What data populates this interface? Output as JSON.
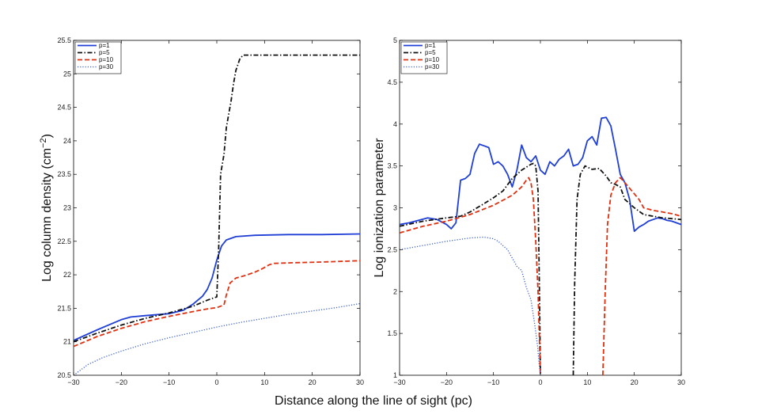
{
  "figure": {
    "shared_xlabel": "Distance along the line of sight (pc)"
  },
  "chart_data": [
    {
      "type": "line",
      "ylabel": "Log column density (cm",
      "ylabel_sup": "−2",
      "ylabel_end": ")",
      "xlim": [
        -30,
        30
      ],
      "ylim": [
        20.5,
        25.5
      ],
      "xticks": [
        -30,
        -20,
        -10,
        0,
        10,
        20,
        30
      ],
      "xtick_labels": [
        "−30",
        "−20",
        "−10",
        "0",
        "10",
        "20",
        "30"
      ],
      "yticks": [
        20.5,
        21,
        21.5,
        22,
        22.5,
        23,
        23.5,
        24,
        24.5,
        25,
        25.5
      ],
      "ytick_labels": [
        "20.5",
        "21",
        "21.5",
        "22",
        "22.5",
        "23",
        "23.5",
        "24",
        "24.5",
        "25",
        "25.5"
      ],
      "legend_position": "top-left",
      "series": [
        {
          "name": "p=1",
          "color": "#1f3fd6",
          "style": "solid",
          "segments": [
            [
              [
                -30,
                21.02
              ],
              [
                -25,
                21.18
              ],
              [
                -20,
                21.33
              ],
              [
                -18,
                21.37
              ],
              [
                -15,
                21.39
              ],
              [
                -10,
                21.42
              ],
              [
                -7,
                21.47
              ],
              [
                -5,
                21.56
              ],
              [
                -3,
                21.68
              ],
              [
                -2,
                21.78
              ],
              [
                -1,
                21.95
              ],
              [
                0,
                22.22
              ],
              [
                1,
                22.43
              ],
              [
                2,
                22.52
              ],
              [
                4,
                22.57
              ],
              [
                8,
                22.59
              ],
              [
                15,
                22.6
              ],
              [
                22,
                22.6
              ],
              [
                30,
                22.61
              ]
            ]
          ]
        },
        {
          "name": "p=5",
          "color": "#111111",
          "style": "dashdot",
          "segments": [
            [
              [
                -30,
                21.0
              ],
              [
                -25,
                21.13
              ],
              [
                -20,
                21.25
              ],
              [
                -15,
                21.35
              ],
              [
                -10,
                21.43
              ],
              [
                -5,
                21.53
              ],
              [
                -2,
                21.62
              ],
              [
                0,
                21.67
              ],
              [
                0.4,
                22.4
              ],
              [
                0.8,
                23.5
              ],
              [
                1.5,
                23.8
              ],
              [
                2,
                24.2
              ],
              [
                3,
                24.6
              ],
              [
                3.5,
                24.85
              ],
              [
                4,
                25.05
              ],
              [
                4.8,
                25.22
              ],
              [
                5.5,
                25.28
              ],
              [
                10,
                25.28
              ],
              [
                20,
                25.28
              ],
              [
                30,
                25.28
              ]
            ]
          ]
        },
        {
          "name": "p=10",
          "color": "#e03010",
          "style": "dashed",
          "segments": [
            [
              [
                -30,
                20.93
              ],
              [
                -25,
                21.08
              ],
              [
                -20,
                21.2
              ],
              [
                -15,
                21.3
              ],
              [
                -10,
                21.38
              ],
              [
                -5,
                21.45
              ],
              [
                -2,
                21.49
              ],
              [
                0,
                21.51
              ],
              [
                1.5,
                21.55
              ],
              [
                2,
                21.7
              ],
              [
                2.8,
                21.88
              ],
              [
                4,
                21.95
              ],
              [
                6,
                21.99
              ],
              [
                8,
                22.04
              ],
              [
                9.5,
                22.09
              ],
              [
                11,
                22.15
              ],
              [
                12,
                22.17
              ],
              [
                16,
                22.18
              ],
              [
                22,
                22.19
              ],
              [
                30,
                22.21
              ]
            ]
          ]
        },
        {
          "name": "p=30",
          "color": "#3a5fd0",
          "style": "dotted",
          "segments": [
            [
              [
                -30,
                20.5
              ],
              [
                -27,
                20.66
              ],
              [
                -24,
                20.76
              ],
              [
                -20,
                20.86
              ],
              [
                -15,
                20.97
              ],
              [
                -10,
                21.06
              ],
              [
                -5,
                21.14
              ],
              [
                0,
                21.22
              ],
              [
                5,
                21.29
              ],
              [
                10,
                21.35
              ],
              [
                15,
                21.41
              ],
              [
                20,
                21.46
              ],
              [
                25,
                21.51
              ],
              [
                30,
                21.57
              ]
            ]
          ]
        }
      ]
    },
    {
      "type": "line",
      "ylabel": "Log ionization parameter",
      "xlim": [
        -30,
        30
      ],
      "ylim": [
        1,
        5
      ],
      "xticks": [
        -30,
        -20,
        -10,
        0,
        10,
        20,
        30
      ],
      "xtick_labels": [
        "−30",
        "−20",
        "−10",
        "0",
        "10",
        "20",
        "30"
      ],
      "yticks": [
        1,
        1.5,
        2,
        2.5,
        3,
        3.5,
        4,
        4.5,
        5
      ],
      "ytick_labels": [
        "1",
        "1.5",
        "2",
        "2.5",
        "3",
        "3.5",
        "4",
        "4.5",
        "5"
      ],
      "legend_position": "top-left",
      "series": [
        {
          "name": "p=1",
          "color": "#1f3fd6",
          "style": "solid",
          "segments": [
            [
              [
                -30,
                2.8
              ],
              [
                -28,
                2.82
              ],
              [
                -26,
                2.85
              ],
              [
                -24,
                2.88
              ],
              [
                -22,
                2.86
              ],
              [
                -20,
                2.8
              ],
              [
                -19,
                2.75
              ],
              [
                -18,
                2.82
              ],
              [
                -17,
                3.33
              ],
              [
                -16,
                3.35
              ],
              [
                -15,
                3.4
              ],
              [
                -14,
                3.65
              ],
              [
                -13,
                3.76
              ],
              [
                -12,
                3.74
              ],
              [
                -11,
                3.72
              ],
              [
                -10,
                3.52
              ],
              [
                -9,
                3.55
              ],
              [
                -8,
                3.5
              ],
              [
                -7,
                3.4
              ],
              [
                -6,
                3.25
              ],
              [
                -5,
                3.45
              ],
              [
                -4,
                3.75
              ],
              [
                -3,
                3.6
              ],
              [
                -2,
                3.55
              ],
              [
                -1,
                3.62
              ],
              [
                0,
                3.45
              ],
              [
                1,
                3.4
              ],
              [
                2,
                3.55
              ],
              [
                3,
                3.5
              ],
              [
                4,
                3.58
              ],
              [
                5,
                3.62
              ],
              [
                6,
                3.7
              ],
              [
                7,
                3.5
              ],
              [
                8,
                3.52
              ],
              [
                9,
                3.6
              ],
              [
                10,
                3.8
              ],
              [
                11,
                3.85
              ],
              [
                12,
                3.75
              ],
              [
                13,
                4.07
              ],
              [
                14,
                4.08
              ],
              [
                15,
                3.98
              ],
              [
                16,
                3.7
              ],
              [
                17,
                3.4
              ],
              [
                18,
                3.3
              ],
              [
                19,
                3.1
              ],
              [
                20,
                2.72
              ],
              [
                21,
                2.77
              ],
              [
                22,
                2.8
              ],
              [
                23,
                2.84
              ],
              [
                24,
                2.86
              ],
              [
                25,
                2.88
              ],
              [
                26,
                2.87
              ],
              [
                27,
                2.85
              ],
              [
                28,
                2.84
              ],
              [
                30,
                2.8
              ]
            ]
          ]
        },
        {
          "name": "p=5",
          "color": "#111111",
          "style": "dashdot",
          "segments": [
            [
              [
                -30,
                2.78
              ],
              [
                -25,
                2.84
              ],
              [
                -20,
                2.88
              ],
              [
                -17,
                2.9
              ],
              [
                -15,
                2.95
              ],
              [
                -12,
                3.05
              ],
              [
                -10,
                3.12
              ],
              [
                -8,
                3.2
              ],
              [
                -6,
                3.35
              ],
              [
                -4,
                3.45
              ],
              [
                -2,
                3.52
              ],
              [
                -1.5,
                3.53
              ],
              [
                -1,
                3.5
              ],
              [
                -0.5,
                3.2
              ],
              [
                -0.2,
                2.0
              ],
              [
                0,
                1.0
              ]
            ],
            [
              [
                7,
                1.0
              ],
              [
                7.3,
                2.1
              ],
              [
                7.8,
                3.1
              ],
              [
                8.5,
                3.4
              ],
              [
                9.5,
                3.5
              ],
              [
                11,
                3.46
              ],
              [
                12.5,
                3.47
              ],
              [
                14,
                3.38
              ],
              [
                15,
                3.3
              ],
              [
                16,
                3.28
              ],
              [
                17,
                3.25
              ],
              [
                18,
                3.1
              ],
              [
                20,
                3.0
              ],
              [
                22,
                2.92
              ],
              [
                24,
                2.9
              ],
              [
                26,
                2.88
              ],
              [
                28,
                2.87
              ],
              [
                30,
                2.86
              ]
            ]
          ]
        },
        {
          "name": "p=10",
          "color": "#e03010",
          "style": "dashed",
          "segments": [
            [
              [
                -30,
                2.7
              ],
              [
                -25,
                2.78
              ],
              [
                -20,
                2.84
              ],
              [
                -15,
                2.92
              ],
              [
                -10,
                3.03
              ],
              [
                -6,
                3.15
              ],
              [
                -4,
                3.25
              ],
              [
                -3,
                3.33
              ],
              [
                -2.5,
                3.36
              ],
              [
                -2,
                3.3
              ],
              [
                -1.5,
                3.1
              ],
              [
                -1,
                2.6
              ],
              [
                -0.5,
                2.0
              ],
              [
                -0.2,
                1.4
              ],
              [
                0,
                1.0
              ]
            ],
            [
              [
                13.3,
                1.0
              ],
              [
                13.8,
                2.0
              ],
              [
                14.3,
                2.8
              ],
              [
                15,
                3.15
              ],
              [
                16,
                3.3
              ],
              [
                17,
                3.36
              ],
              [
                18,
                3.3
              ],
              [
                19.5,
                3.2
              ],
              [
                21,
                3.1
              ],
              [
                22,
                3.0
              ],
              [
                24,
                2.97
              ],
              [
                26,
                2.95
              ],
              [
                28,
                2.93
              ],
              [
                30,
                2.9
              ]
            ]
          ]
        },
        {
          "name": "p=30",
          "color": "#3a5fd0",
          "style": "dotted",
          "segments": [
            [
              [
                -30,
                2.5
              ],
              [
                -25,
                2.55
              ],
              [
                -20,
                2.6
              ],
              [
                -15,
                2.64
              ],
              [
                -12,
                2.65
              ],
              [
                -10,
                2.63
              ],
              [
                -9,
                2.6
              ],
              [
                -8,
                2.55
              ],
              [
                -7,
                2.5
              ],
              [
                -6,
                2.4
              ],
              [
                -5,
                2.3
              ],
              [
                -4,
                2.25
              ],
              [
                -3,
                2.05
              ],
              [
                -2,
                1.9
              ],
              [
                -1.2,
                1.6
              ],
              [
                -0.6,
                1.35
              ],
              [
                -0.3,
                1.15
              ],
              [
                0,
                1.0
              ]
            ]
          ]
        }
      ]
    }
  ]
}
